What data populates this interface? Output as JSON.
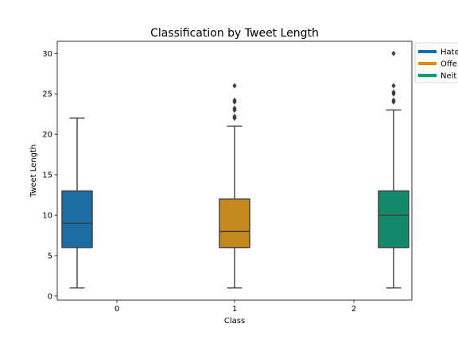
{
  "chart_data": {
    "type": "box",
    "title": "Classification by Tweet Length",
    "xlabel": "Class",
    "ylabel": "Tweet Length",
    "categories": [
      "0",
      "1",
      "2"
    ],
    "ylim": [
      -0.5,
      31.5
    ],
    "yticks": [
      0,
      5,
      10,
      15,
      20,
      25,
      30
    ],
    "grid": false,
    "legend_position": "outside-top-right",
    "legend": [
      {
        "label": "Hate",
        "color": "#0173b2"
      },
      {
        "label": "Offe",
        "color": "#de8f05"
      },
      {
        "label": "Neit",
        "color": "#029e73"
      }
    ],
    "series": [
      {
        "category": "0",
        "offset": -1,
        "color": "#1a6ea1",
        "min": 1,
        "q1": 6,
        "median": 9,
        "q3": 13,
        "max": 22,
        "outliers": []
      },
      {
        "category": "1",
        "offset": 0,
        "color": "#c4881e",
        "min": 1,
        "q1": 6,
        "median": 8,
        "q3": 12,
        "max": 21,
        "outliers": [
          22,
          22.2,
          23,
          23.2,
          24,
          24.2,
          26
        ]
      },
      {
        "category": "2",
        "offset": 1,
        "color": "#138a69",
        "min": 1,
        "q1": 6,
        "median": 10,
        "q3": 13,
        "max": 23,
        "outliers": [
          24,
          24.2,
          25,
          25.2,
          26,
          30
        ]
      }
    ]
  }
}
